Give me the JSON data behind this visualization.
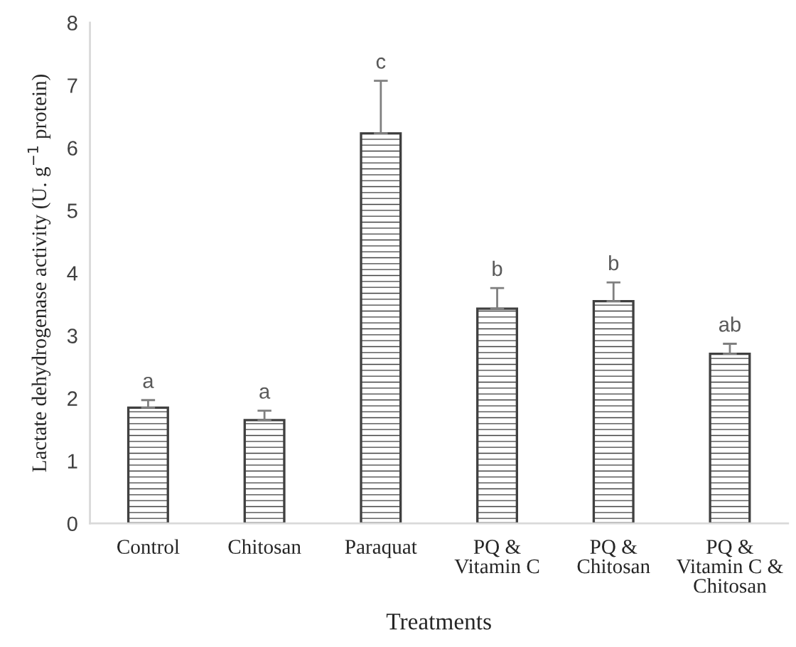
{
  "chart_data": {
    "type": "bar",
    "xlabel": "Treatments",
    "ylabel": "Lactate dehydrogenase activity (U. g$^{−1}$ protein)",
    "categories": [
      "Control",
      "Chitosan",
      "Paraquat",
      "PQ &\nVitamin C",
      "PQ &\nChitosan",
      "PQ &\nVitamin C &\nChitosan"
    ],
    "values": [
      1.85,
      1.65,
      6.23,
      3.43,
      3.55,
      2.71
    ],
    "errors": [
      [
        1.85,
        1.97
      ],
      [
        1.65,
        1.8
      ],
      [
        6.23,
        7.07
      ],
      [
        3.43,
        3.76
      ],
      [
        3.55,
        3.85
      ],
      [
        2.71,
        2.87
      ]
    ],
    "color": "#404040",
    "ylim": [
      0,
      8
    ],
    "yticks": [
      0,
      1,
      2,
      3,
      4,
      5,
      6,
      7,
      8
    ],
    "grid": false,
    "legend": false,
    "annotations": [
      {
        "text": "a",
        "x": "Control",
        "y": 1.97
      },
      {
        "text": "a",
        "x": "Chitosan",
        "y": 1.8
      },
      {
        "text": "c",
        "x": "Paraquat",
        "y": 7.07
      },
      {
        "text": "b",
        "x": "PQ &\nVitamin C",
        "y": 3.76
      },
      {
        "text": "b",
        "x": "PQ &\nChitosan",
        "y": 3.85
      },
      {
        "text": "ab",
        "x": "PQ &\nVitamin C &\nChitosan",
        "y": 2.87
      }
    ]
  }
}
